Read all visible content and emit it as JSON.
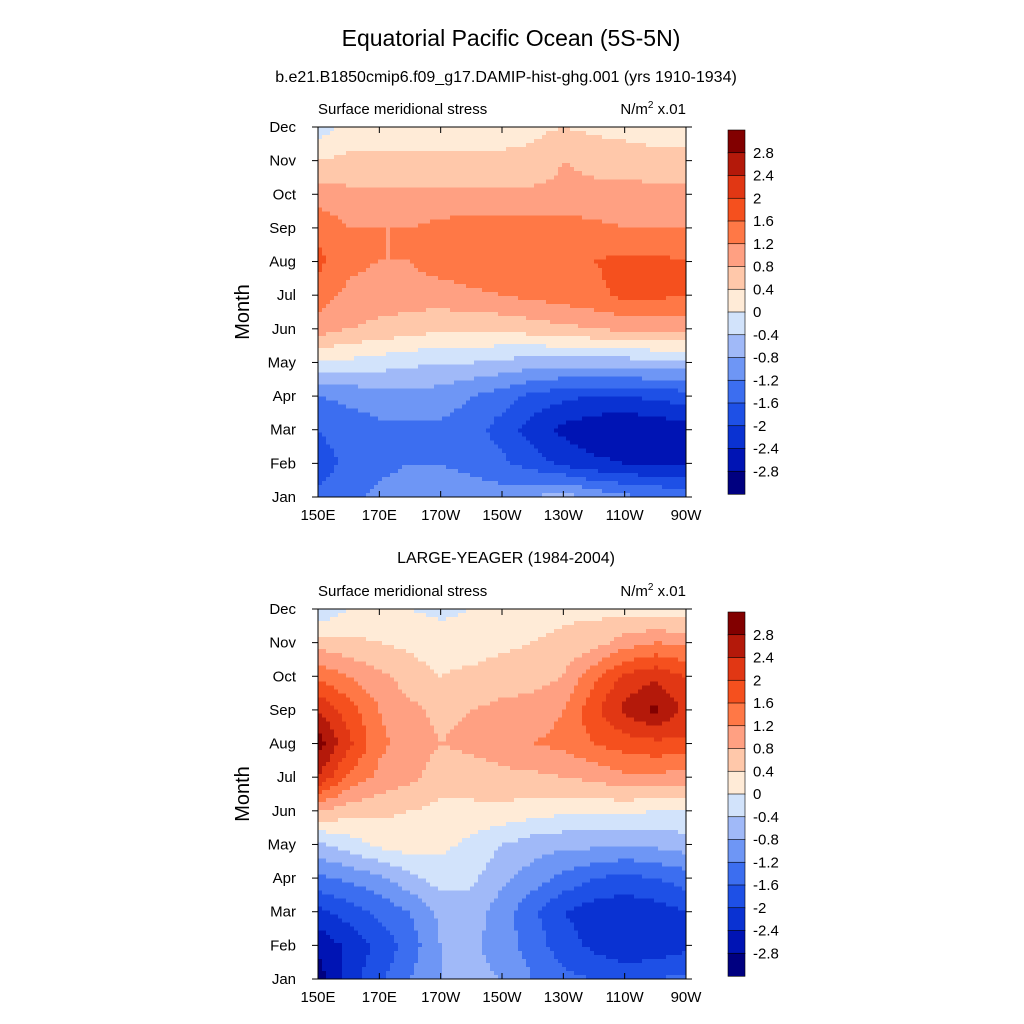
{
  "figure": {
    "title": "Equatorial Pacific Ocean (5S-5N)"
  },
  "chart_data": [
    {
      "type": "heatmap",
      "title": "b.e21.B1850cmip6.f09_g17.DAMIP-hist-ghg.001 (yrs 1910-1934)",
      "left_label": "Surface meridional stress",
      "units_label": "N/m",
      "units_sup": "2",
      "units_suffix": " x.01",
      "ylabel": "Month",
      "x_tick_labels": [
        "150E",
        "170E",
        "170W",
        "150W",
        "130W",
        "110W",
        "90W"
      ],
      "x_tick_lon": [
        150,
        170,
        190,
        210,
        230,
        250,
        270
      ],
      "xlim": [
        150,
        270
      ],
      "y_tick_labels": [
        "Jan",
        "Feb",
        "Mar",
        "Apr",
        "May",
        "Jun",
        "Jul",
        "Aug",
        "Sep",
        "Oct",
        "Nov",
        "Dec"
      ],
      "lon": [
        150,
        160,
        170,
        180,
        190,
        200,
        210,
        220,
        230,
        240,
        250,
        260,
        270
      ],
      "values": [
        [
          -1.5,
          -1.3,
          -1.1,
          -1.0,
          -1.0,
          -1.0,
          -1.0,
          -0.8,
          -0.6,
          -0.9,
          -1.1,
          -1.2,
          -1.3
        ],
        [
          -1.8,
          -1.5,
          -1.3,
          -1.2,
          -1.2,
          -1.3,
          -1.5,
          -1.8,
          -2.1,
          -2.3,
          -2.4,
          -2.5,
          -2.5
        ],
        [
          -1.6,
          -1.4,
          -1.3,
          -1.3,
          -1.3,
          -1.4,
          -1.8,
          -2.2,
          -2.5,
          -2.7,
          -2.8,
          -2.7,
          -2.6
        ],
        [
          -1.2,
          -1.1,
          -1.0,
          -0.9,
          -1.0,
          -1.2,
          -1.4,
          -1.7,
          -1.9,
          -2.0,
          -2.0,
          -1.9,
          -1.8
        ],
        [
          0.0,
          -0.1,
          -0.2,
          -0.3,
          -0.4,
          -0.4,
          -0.5,
          -0.6,
          -0.6,
          -0.6,
          -0.6,
          -0.5,
          -0.5
        ],
        [
          1.0,
          0.8,
          0.7,
          0.6,
          0.5,
          0.5,
          0.5,
          0.6,
          0.7,
          0.8,
          0.9,
          0.9,
          0.9
        ],
        [
          1.4,
          1.1,
          1.0,
          1.0,
          1.0,
          1.1,
          1.2,
          1.3,
          1.4,
          1.5,
          1.7,
          1.7,
          1.6
        ],
        [
          1.7,
          1.3,
          1.2,
          1.2,
          1.4,
          1.5,
          1.6,
          1.6,
          1.6,
          1.6,
          1.7,
          1.7,
          1.6
        ],
        [
          1.5,
          1.2,
          1.2,
          1.2,
          1.3,
          1.4,
          1.4,
          1.4,
          1.4,
          1.3,
          1.2,
          1.2,
          1.2
        ],
        [
          1.0,
          0.9,
          0.9,
          0.9,
          0.9,
          0.9,
          0.9,
          0.9,
          0.9,
          0.9,
          0.9,
          0.9,
          0.9
        ],
        [
          0.4,
          0.5,
          0.5,
          0.5,
          0.5,
          0.5,
          0.5,
          0.5,
          0.8,
          0.7,
          0.7,
          0.6,
          0.6
        ],
        [
          -0.2,
          0.1,
          0.2,
          0.2,
          0.2,
          0.2,
          0.2,
          0.3,
          0.4,
          0.3,
          0.2,
          0.1,
          0.1
        ]
      ],
      "levels": [
        -2.8,
        -2.4,
        -2,
        -1.6,
        -1.2,
        -0.8,
        -0.4,
        0,
        0.4,
        0.8,
        1.2,
        1.6,
        2,
        2.4,
        2.8
      ],
      "colorbar_labels": [
        "2.8",
        "2.4",
        "2",
        "1.6",
        "1.2",
        "0.8",
        "0.4",
        "0",
        "-0.4",
        "-0.8",
        "-1.2",
        "-1.6",
        "-2",
        "-2.4",
        "-2.8"
      ],
      "colors": [
        "#000080",
        "#0014b4",
        "#0a32d2",
        "#1e50e6",
        "#3c6ef0",
        "#6e96f5",
        "#a0b9f8",
        "#d2e3fb",
        "#ffebd7",
        "#ffc8aa",
        "#ffa082",
        "#ff7846",
        "#f5501e",
        "#e13714",
        "#b4190a",
        "#820000"
      ]
    },
    {
      "type": "heatmap",
      "title": "LARGE-YEAGER (1984-2004)",
      "left_label": "Surface meridional stress",
      "units_label": "N/m",
      "units_sup": "2",
      "units_suffix": " x.01",
      "ylabel": "Month",
      "x_tick_labels": [
        "150E",
        "170E",
        "170W",
        "150W",
        "130W",
        "110W",
        "90W"
      ],
      "x_tick_lon": [
        150,
        170,
        190,
        210,
        230,
        250,
        270
      ],
      "xlim": [
        150,
        270
      ],
      "y_tick_labels": [
        "Jan",
        "Feb",
        "Mar",
        "Apr",
        "May",
        "Jun",
        "Jul",
        "Aug",
        "Sep",
        "Oct",
        "Nov",
        "Dec"
      ],
      "lon": [
        150,
        160,
        170,
        180,
        190,
        200,
        210,
        220,
        230,
        240,
        250,
        260,
        270
      ],
      "values": [
        [
          -3.0,
          -2.2,
          -1.7,
          -1.2,
          -0.8,
          -0.7,
          -0.8,
          -1.2,
          -1.5,
          -1.6,
          -1.6,
          -1.6,
          -1.5
        ],
        [
          -2.7,
          -2.3,
          -1.9,
          -1.4,
          -0.8,
          -0.7,
          -1.0,
          -1.4,
          -1.8,
          -2.1,
          -2.4,
          -2.3,
          -2.1
        ],
        [
          -2.1,
          -1.8,
          -1.5,
          -1.2,
          -0.7,
          -0.6,
          -1.0,
          -1.5,
          -2.0,
          -2.2,
          -2.3,
          -2.2,
          -2.0
        ],
        [
          -1.3,
          -1.1,
          -0.9,
          -0.5,
          -0.2,
          -0.3,
          -0.7,
          -1.0,
          -1.3,
          -1.6,
          -1.7,
          -1.6,
          -1.4
        ],
        [
          -0.5,
          -0.2,
          0.1,
          0.2,
          0.1,
          -0.1,
          -0.4,
          -0.6,
          -0.7,
          -0.7,
          -0.8,
          -0.7,
          -0.6
        ],
        [
          0.8,
          0.6,
          0.5,
          0.4,
          0.3,
          0.3,
          0.3,
          0.2,
          0.1,
          0.1,
          0.1,
          0.0,
          0.0
        ],
        [
          2.4,
          1.5,
          1.1,
          0.9,
          0.6,
          0.6,
          0.7,
          0.7,
          0.8,
          0.9,
          1.1,
          1.1,
          1.0
        ],
        [
          3.0,
          2.1,
          1.3,
          1.0,
          0.8,
          0.9,
          1.0,
          1.2,
          1.3,
          1.6,
          1.8,
          1.9,
          1.9
        ],
        [
          2.4,
          1.8,
          1.2,
          0.9,
          0.7,
          0.8,
          0.9,
          1.0,
          1.2,
          1.9,
          2.5,
          2.9,
          2.3
        ],
        [
          1.5,
          1.2,
          0.9,
          0.6,
          0.4,
          0.5,
          0.6,
          0.6,
          0.8,
          1.5,
          2.1,
          2.3,
          2.0
        ],
        [
          0.6,
          0.5,
          0.4,
          0.3,
          0.2,
          0.2,
          0.3,
          0.4,
          0.5,
          0.6,
          1.0,
          1.2,
          1.1
        ],
        [
          -0.4,
          0.0,
          0.1,
          0.0,
          -0.1,
          0.0,
          0.1,
          0.2,
          0.3,
          0.3,
          0.2,
          0.1,
          0.1
        ]
      ],
      "levels": [
        -2.8,
        -2.4,
        -2,
        -1.6,
        -1.2,
        -0.8,
        -0.4,
        0,
        0.4,
        0.8,
        1.2,
        1.6,
        2,
        2.4,
        2.8
      ],
      "colorbar_labels": [
        "2.8",
        "2.4",
        "2",
        "1.6",
        "1.2",
        "0.8",
        "0.4",
        "0",
        "-0.4",
        "-0.8",
        "-1.2",
        "-1.6",
        "-2",
        "-2.4",
        "-2.8"
      ],
      "colors": [
        "#000080",
        "#0014b4",
        "#0a32d2",
        "#1e50e6",
        "#3c6ef0",
        "#6e96f5",
        "#a0b9f8",
        "#d2e3fb",
        "#ffebd7",
        "#ffc8aa",
        "#ffa082",
        "#ff7846",
        "#f5501e",
        "#e13714",
        "#b4190a",
        "#820000"
      ]
    }
  ]
}
